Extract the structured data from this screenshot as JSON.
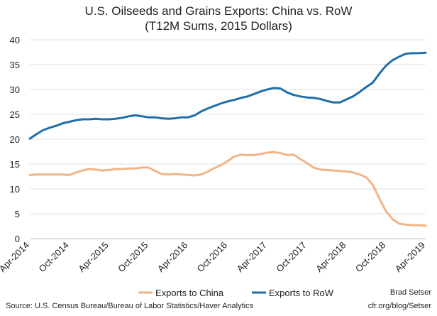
{
  "chart_data": {
    "type": "line",
    "title": "U.S. Oilseeds and Grains Exports: China vs. RoW",
    "subtitle": "(T12M Sums, 2015 Dollars)",
    "ylim": [
      0,
      40
    ],
    "yticks": [
      0,
      5,
      10,
      15,
      20,
      25,
      30,
      35,
      40
    ],
    "xticks": [
      "Apr-2014",
      "Oct-2014",
      "Apr-2015",
      "Oct-2015",
      "Apr-2016",
      "Oct-2016",
      "Apr-2017",
      "Oct-2017",
      "Apr-2018",
      "Oct-2018",
      "Apr-2019"
    ],
    "grid": true,
    "legend_position": "bottom",
    "colors": {
      "china": "#f2b486",
      "row": "#1e6fa8"
    },
    "series": [
      {
        "name": "Exports to China",
        "values": [
          12.8,
          12.9,
          12.9,
          12.9,
          12.9,
          12.9,
          12.8,
          13.3,
          13.7,
          14.0,
          13.9,
          13.7,
          13.8,
          14.0,
          14.0,
          14.1,
          14.1,
          14.3,
          14.3,
          13.6,
          13.0,
          12.9,
          13.0,
          12.9,
          12.8,
          12.7,
          12.9,
          13.5,
          14.2,
          14.8,
          15.6,
          16.5,
          16.9,
          16.8,
          16.8,
          17.0,
          17.3,
          17.4,
          17.2,
          16.8,
          16.9,
          16.0,
          15.2,
          14.3,
          13.9,
          13.8,
          13.7,
          13.6,
          13.5,
          13.3,
          12.9,
          12.3,
          10.8,
          8.0,
          5.5,
          3.9,
          3.0,
          2.8,
          2.7,
          2.7,
          2.6
        ]
      },
      {
        "name": "Exports to RoW",
        "values": [
          20.1,
          21.0,
          21.8,
          22.3,
          22.7,
          23.2,
          23.5,
          23.8,
          24.0,
          24.0,
          24.1,
          24.0,
          24.0,
          24.1,
          24.3,
          24.6,
          24.8,
          24.6,
          24.4,
          24.4,
          24.2,
          24.1,
          24.2,
          24.4,
          24.4,
          24.8,
          25.6,
          26.2,
          26.7,
          27.2,
          27.6,
          27.9,
          28.3,
          28.6,
          29.1,
          29.6,
          30.0,
          30.3,
          30.2,
          29.4,
          28.9,
          28.6,
          28.4,
          28.3,
          28.1,
          27.7,
          27.4,
          27.4,
          28.0,
          28.6,
          29.5,
          30.5,
          31.4,
          33.2,
          34.8,
          35.9,
          36.6,
          37.2,
          37.3,
          37.3,
          37.4
        ]
      }
    ]
  },
  "source": "Source: U.S. Census Bureau/Bureau of Labor Statistics/Haver Analytics",
  "credit_line1": "Brad Setser",
  "credit_line2": "cfr.org/blog/Setser"
}
